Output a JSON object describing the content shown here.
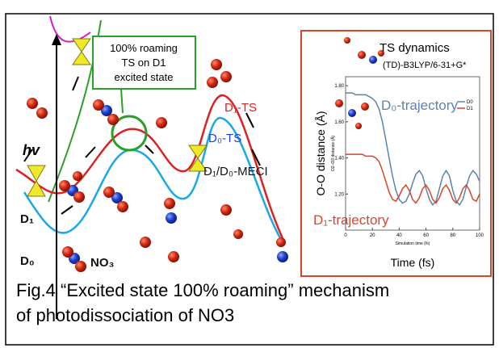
{
  "figure": {
    "diagram": {
      "box_text": [
        "100% roaming",
        "TS on D1",
        "excited state"
      ],
      "hv": "hv",
      "d1": "D₁",
      "d0": "D₀",
      "no3": "NO₃",
      "d1_ts": "D₁-TS",
      "d0_ts": "D₀-TS",
      "meci": "D₁/D₀-MECI"
    },
    "inset": {
      "type": "line",
      "title": "TS dynamics",
      "subtitle": "(TD)-B3LYP/6-31+G*",
      "ylabel": "O-O distance (Å)",
      "xlabel": "Time (fs)",
      "inner_xlabel": "Simulation time (fs)",
      "inner_ylabel": "O2–O3 distance (Å)",
      "annotations": [
        "D₀-trajectory",
        "D₁-trajectory"
      ],
      "x": [
        0,
        2.5,
        5,
        7.5,
        10,
        12.5,
        15,
        17.5,
        20,
        22.5,
        25,
        27.5,
        30,
        32.5,
        35,
        37.5,
        40,
        42.5,
        45,
        47.5,
        50,
        52.5,
        55,
        57.5,
        60,
        62.5,
        65,
        67.5,
        70,
        72.5,
        75,
        77.5,
        80,
        82.5,
        85,
        87.5,
        90,
        92.5,
        95,
        97.5,
        100
      ],
      "xlim": [
        0,
        100
      ],
      "ylim": [
        1.0,
        1.85
      ],
      "xticks": [
        0,
        20,
        40,
        60,
        80,
        100
      ],
      "yticks": [
        {
          "value": 1.2,
          "label": "1.20"
        },
        {
          "value": 1.4,
          "label": "1.40"
        },
        {
          "value": 1.6,
          "label": "1.60"
        },
        {
          "value": 1.8,
          "label": "1.80"
        }
      ],
      "series": [
        {
          "name": "D0",
          "color": "#5b83b0",
          "values": [
            1.76,
            1.76,
            1.76,
            1.75,
            1.75,
            1.75,
            1.75,
            1.74,
            1.73,
            1.71,
            1.67,
            1.6,
            1.5,
            1.4,
            1.3,
            1.22,
            1.17,
            1.15,
            1.16,
            1.2,
            1.26,
            1.31,
            1.33,
            1.3,
            1.23,
            1.17,
            1.14,
            1.16,
            1.23,
            1.3,
            1.33,
            1.3,
            1.22,
            1.16,
            1.14,
            1.17,
            1.24,
            1.3,
            1.33,
            1.31,
            1.27
          ]
        },
        {
          "name": "D1",
          "color": "#d9442a",
          "values": [
            1.42,
            1.42,
            1.42,
            1.42,
            1.42,
            1.42,
            1.41,
            1.41,
            1.41,
            1.4,
            1.38,
            1.33,
            1.27,
            1.21,
            1.17,
            1.16,
            1.19,
            1.23,
            1.25,
            1.22,
            1.17,
            1.15,
            1.18,
            1.23,
            1.25,
            1.22,
            1.17,
            1.15,
            1.18,
            1.23,
            1.25,
            1.22,
            1.17,
            1.15,
            1.18,
            1.23,
            1.25,
            1.22,
            1.17,
            1.16,
            1.2
          ]
        }
      ]
    },
    "caption": [
      "Fig.4 “Excited state 100% roaming” mechanism",
      "of photodissociation of NO3"
    ]
  }
}
